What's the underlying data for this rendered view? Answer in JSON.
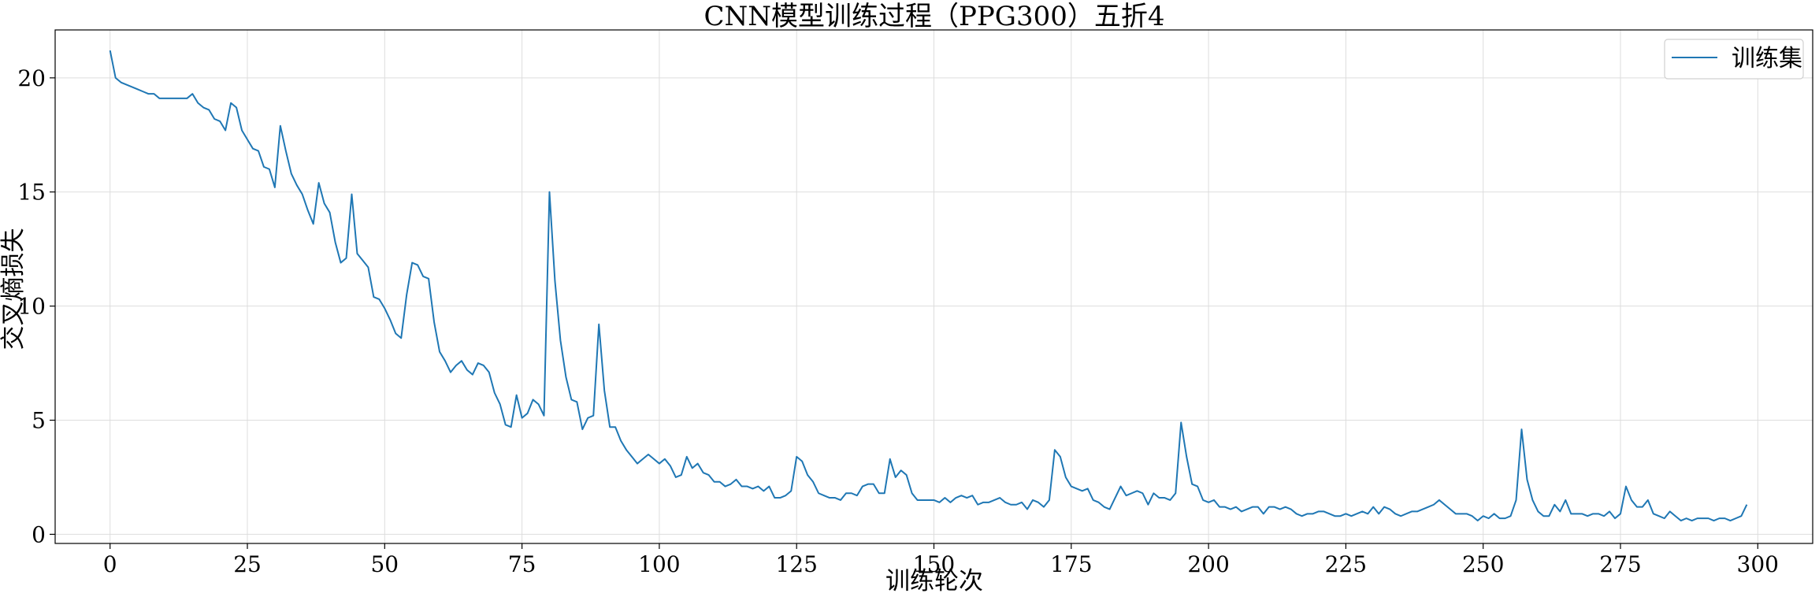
{
  "chart_data": {
    "type": "line",
    "title": "CNN模型训练过程（PPG300）五折4",
    "xlabel": "训练轮次",
    "ylabel": "交叉熵损失",
    "xlim": [
      -10,
      310
    ],
    "ylim": [
      -0.4,
      22.1
    ],
    "xticks": [
      0,
      25,
      50,
      75,
      100,
      125,
      150,
      175,
      200,
      225,
      250,
      275,
      300
    ],
    "yticks": [
      0,
      5,
      10,
      15,
      20
    ],
    "grid": true,
    "legend": "top-right",
    "series": [
      {
        "name": "训练集",
        "color": "#1f77b4",
        "values": [
          21.2,
          20.0,
          19.8,
          19.7,
          19.6,
          19.5,
          19.4,
          19.3,
          19.3,
          19.1,
          19.1,
          19.1,
          19.1,
          19.1,
          19.1,
          19.3,
          18.9,
          18.7,
          18.6,
          18.2,
          18.1,
          17.7,
          18.9,
          18.7,
          17.7,
          17.3,
          16.9,
          16.8,
          16.1,
          16.0,
          15.2,
          17.9,
          16.8,
          15.8,
          15.3,
          14.9,
          14.2,
          13.6,
          15.4,
          14.5,
          14.1,
          12.8,
          11.9,
          12.1,
          14.9,
          12.3,
          12.0,
          11.7,
          10.4,
          10.3,
          9.9,
          9.4,
          8.8,
          8.6,
          10.5,
          11.9,
          11.8,
          11.3,
          11.2,
          9.3,
          8.0,
          7.6,
          7.1,
          7.4,
          7.6,
          7.2,
          7.0,
          7.5,
          7.4,
          7.1,
          6.2,
          5.7,
          4.8,
          4.7,
          6.1,
          5.1,
          5.3,
          5.9,
          5.7,
          5.2,
          15.0,
          11.1,
          8.5,
          6.9,
          5.9,
          5.8,
          4.6,
          5.1,
          5.2,
          9.2,
          6.3,
          4.7,
          4.7,
          4.1,
          3.7,
          3.4,
          3.1,
          3.3,
          3.5,
          3.3,
          3.1,
          3.3,
          3.0,
          2.5,
          2.6,
          3.4,
          2.9,
          3.1,
          2.7,
          2.6,
          2.3,
          2.3,
          2.1,
          2.2,
          2.4,
          2.1,
          2.1,
          2.0,
          2.1,
          1.9,
          2.1,
          1.6,
          1.6,
          1.7,
          1.9,
          3.4,
          3.2,
          2.6,
          2.3,
          1.8,
          1.7,
          1.6,
          1.6,
          1.5,
          1.8,
          1.8,
          1.7,
          2.1,
          2.2,
          2.2,
          1.8,
          1.8,
          3.3,
          2.5,
          2.8,
          2.6,
          1.8,
          1.5,
          1.5,
          1.5,
          1.5,
          1.4,
          1.6,
          1.4,
          1.6,
          1.7,
          1.6,
          1.7,
          1.3,
          1.4,
          1.4,
          1.5,
          1.6,
          1.4,
          1.3,
          1.3,
          1.4,
          1.1,
          1.5,
          1.4,
          1.2,
          1.5,
          3.7,
          3.4,
          2.5,
          2.1,
          2.0,
          1.9,
          2.0,
          1.5,
          1.4,
          1.2,
          1.1,
          1.6,
          2.1,
          1.7,
          1.8,
          1.9,
          1.8,
          1.3,
          1.8,
          1.6,
          1.6,
          1.5,
          1.8,
          4.9,
          3.4,
          2.2,
          2.1,
          1.5,
          1.4,
          1.5,
          1.2,
          1.2,
          1.1,
          1.2,
          1.0,
          1.1,
          1.2,
          1.2,
          0.9,
          1.2,
          1.2,
          1.1,
          1.2,
          1.1,
          0.9,
          0.8,
          0.9,
          0.9,
          1.0,
          1.0,
          0.9,
          0.8,
          0.8,
          0.9,
          0.8,
          0.9,
          1.0,
          0.9,
          1.2,
          0.9,
          1.2,
          1.1,
          0.9,
          0.8,
          0.9,
          1.0,
          1.0,
          1.1,
          1.2,
          1.3,
          1.5,
          1.3,
          1.1,
          0.9,
          0.9,
          0.9,
          0.8,
          0.6,
          0.8,
          0.7,
          0.9,
          0.7,
          0.7,
          0.8,
          1.5,
          4.6,
          2.4,
          1.5,
          1.0,
          0.8,
          0.8,
          1.3,
          1.0,
          1.5,
          0.9,
          0.9,
          0.9,
          0.8,
          0.9,
          0.9,
          0.8,
          1.0,
          0.7,
          0.9,
          2.1,
          1.5,
          1.2,
          1.2,
          1.5,
          0.9,
          0.8,
          0.7,
          1.0,
          0.8,
          0.6,
          0.7,
          0.6,
          0.7,
          0.7,
          0.7,
          0.6,
          0.7,
          0.7,
          0.6,
          0.7,
          0.8,
          1.3
        ]
      }
    ]
  }
}
